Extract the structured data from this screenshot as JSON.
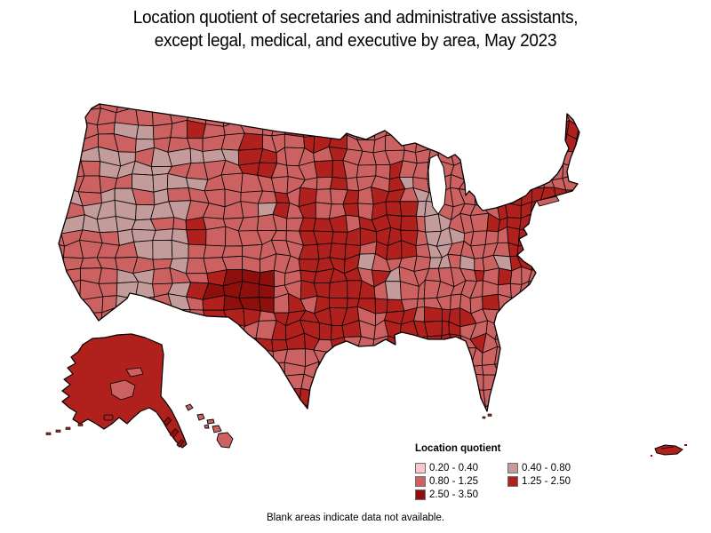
{
  "title": {
    "line1": "Location quotient of secretaries and administrative assistants,",
    "line2": "except legal, medical, and executive by area, May 2023"
  },
  "legend": {
    "title": "Location quotient",
    "items": [
      {
        "range": "0.20 - 0.40",
        "color": "#fac7cb"
      },
      {
        "range": "0.40 - 0.80",
        "color": "#c39b9b"
      },
      {
        "range": "0.80 - 1.25",
        "color": "#cb6261"
      },
      {
        "range": "1.25 - 2.50",
        "color": "#b0211e"
      },
      {
        "range": "2.50 - 3.50",
        "color": "#8e100d"
      }
    ]
  },
  "footnote": "Blank areas indicate data not available.",
  "map": {
    "type": "choropleth",
    "area_border_color": "#000000",
    "water_background": "#ffffff",
    "insets": [
      "Alaska",
      "Hawaii",
      "Puerto Rico"
    ],
    "regions": [
      {
        "name": "West Coast (WA / OR / CA)",
        "dominant_range": "0.80 - 1.25"
      },
      {
        "name": "Great Basin (NV / UT / ID patches)",
        "dominant_range": "0.40 - 0.80"
      },
      {
        "name": "Northern Plains (MT / ND / SD)",
        "dominant_range": "1.25 - 2.50"
      },
      {
        "name": "Central Plains (NE / KS / OK)",
        "dominant_range": "1.25 - 2.50"
      },
      {
        "name": "Texas",
        "dominant_range": "1.25 - 2.50"
      },
      {
        "name": "New Mexico (darkest areas)",
        "dominant_range": "2.50 - 3.50"
      },
      {
        "name": "Upper Midwest (MN / WI / IA patches)",
        "dominant_range": "0.40 - 0.80"
      },
      {
        "name": "Missouri / Arkansas",
        "dominant_range": "0.40 - 0.80"
      },
      {
        "name": "Indiana (incl. rare light areas)",
        "dominant_range": "0.40 - 0.80"
      },
      {
        "name": "Southeast belt (AL / GA / TN)",
        "dominant_range": "1.25 - 2.50"
      },
      {
        "name": "Upstate New York / Pennsylvania",
        "dominant_range": "1.25 - 2.50"
      },
      {
        "name": "New England",
        "dominant_range": "0.80 - 1.25"
      },
      {
        "name": "Florida",
        "dominant_range": "0.80 - 1.25"
      },
      {
        "name": "Alaska",
        "dominant_range": "1.25 - 2.50"
      },
      {
        "name": "Hawaii",
        "dominant_range": "0.80 - 1.25"
      },
      {
        "name": "Puerto Rico",
        "dominant_range": "1.25 - 2.50"
      }
    ]
  }
}
